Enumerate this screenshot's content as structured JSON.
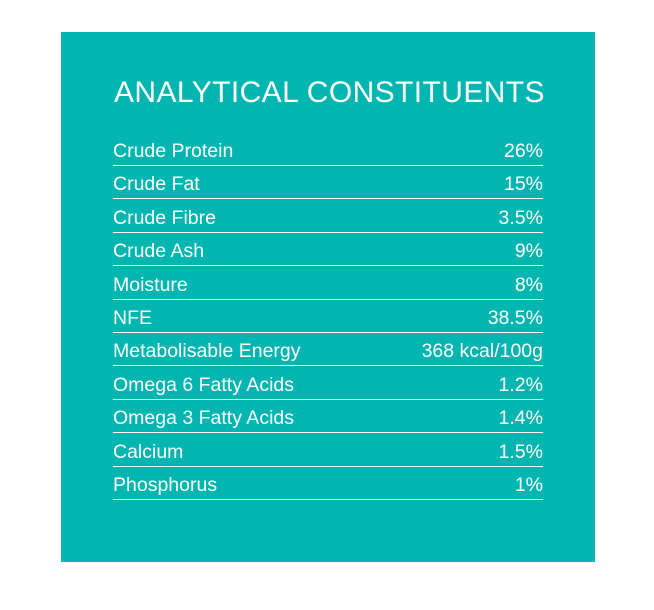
{
  "title": "ANALYTICAL CONSTITUENTS",
  "colors": {
    "panel_background": "#01b5b0",
    "text": "#ffffff"
  },
  "rows": [
    {
      "label": "Crude Protein",
      "value": "26%"
    },
    {
      "label": "Crude Fat",
      "value": "15%"
    },
    {
      "label": "Crude Fibre",
      "value": "3.5%"
    },
    {
      "label": "Crude Ash",
      "value": "9%"
    },
    {
      "label": "Moisture",
      "value": "8%"
    },
    {
      "label": "NFE",
      "value": "38.5%"
    },
    {
      "label": "Metabolisable Energy",
      "value": "368 kcal/100g"
    },
    {
      "label": "Omega 6 Fatty Acids",
      "value": "1.2%"
    },
    {
      "label": "Omega 3 Fatty Acids",
      "value": "1.4%"
    },
    {
      "label": "Calcium",
      "value": "1.5%"
    },
    {
      "label": "Phosphorus",
      "value": "1%"
    }
  ]
}
